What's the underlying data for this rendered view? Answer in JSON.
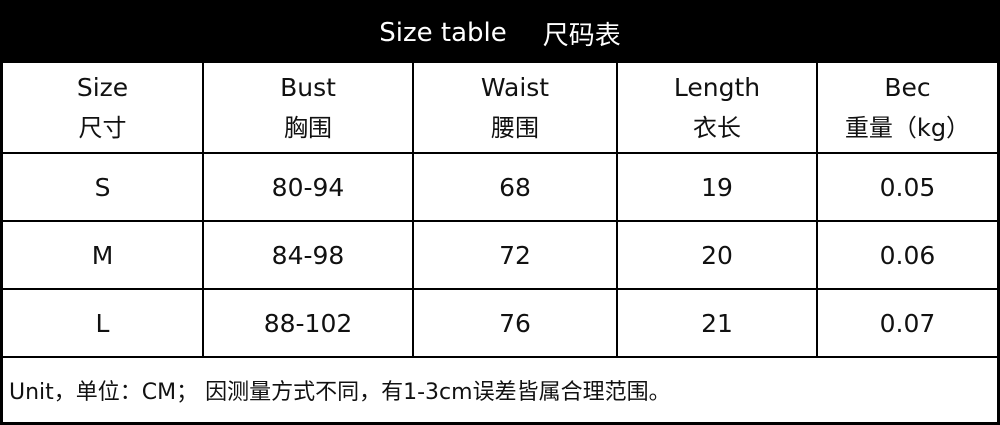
{
  "title": {
    "en": "Size table",
    "zh": "尺码表"
  },
  "columns": [
    {
      "en": "Size",
      "zh": "尺寸"
    },
    {
      "en": "Bust",
      "zh": "胸围"
    },
    {
      "en": "Waist",
      "zh": "腰围"
    },
    {
      "en": "Length",
      "zh": "衣长"
    },
    {
      "en": "Bec",
      "zh": "重量（kg）"
    }
  ],
  "rows": [
    [
      "S",
      "80-94",
      "68",
      "19",
      "0.05"
    ],
    [
      "M",
      "84-98",
      "72",
      "20",
      "0.06"
    ],
    [
      "L",
      "88-102",
      "76",
      "21",
      "0.07"
    ]
  ],
  "footer": "Unit，单位：CM； 因测量方式不同，有1-3cm误差皆属合理范围。"
}
